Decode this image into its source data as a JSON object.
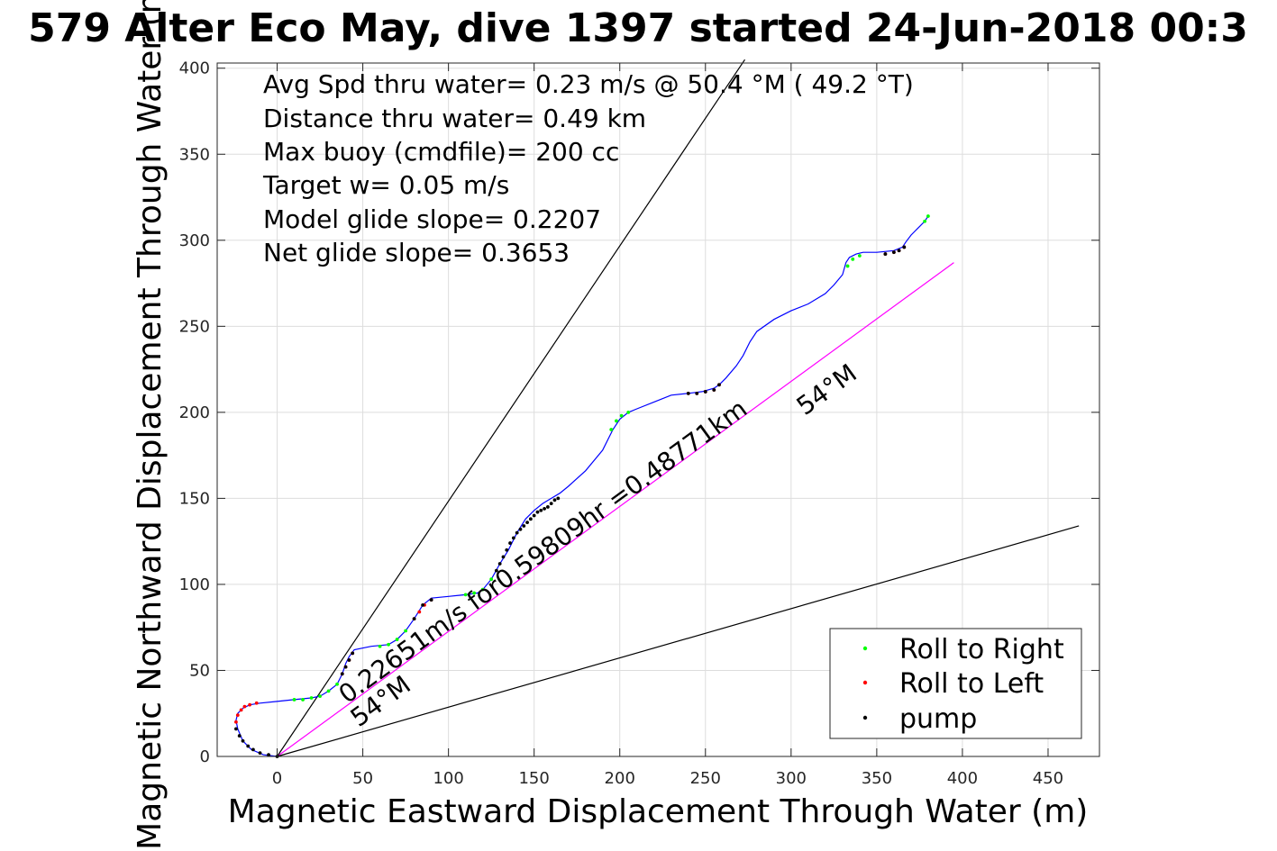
{
  "chart_data": {
    "type": "scatter",
    "title": "579 Alter Eco May, dive 1397 started 24-Jun-2018 00:3",
    "xlabel": "Magnetic Eastward Displacement Through Water (m)",
    "ylabel": "Magnetic Northward Displacement Through Water (m)",
    "xlim": [
      -35,
      480
    ],
    "ylim": [
      0,
      403
    ],
    "xticks": [
      "0",
      "50",
      "100",
      "150",
      "200",
      "250",
      "300",
      "350",
      "400",
      "450"
    ],
    "yticks": [
      "0",
      "50",
      "100",
      "150",
      "200",
      "250",
      "300",
      "350",
      "400"
    ],
    "grid": true,
    "legend_position": "bottom-right",
    "annotations": [
      "Avg Spd thru water=  0.23 m/s @  50.4 °M ( 49.2 °T)",
      "Distance thru water=  0.49 km",
      "Max buoy (cmdfile)= 200 cc",
      "Target w= 0.05 m/s",
      "Model glide slope= 0.2207",
      "Net glide slope= 0.3653"
    ],
    "rotated_labels": {
      "main": "0.22651m/s for0.59809hr =0.48771km",
      "heading_a": "54°M",
      "heading_b": "54°M"
    },
    "colors": {
      "track": "#0000ff",
      "roll_right": "#00ff00",
      "roll_left": "#ff0000",
      "pump": "#000000",
      "heading_line": "#ff00ff",
      "grid": "#dddddd"
    },
    "reference_lines": [
      {
        "name": "heading-line",
        "x": [
          0,
          395
        ],
        "y": [
          0,
          287
        ]
      },
      {
        "name": "glide-slope-upper",
        "x": [
          0,
          273
        ],
        "y": [
          0,
          405
        ]
      },
      {
        "name": "glide-slope-lower",
        "x": [
          0,
          468
        ],
        "y": [
          0,
          134
        ]
      }
    ],
    "track": {
      "x": [
        0,
        -8,
        -15,
        -20,
        -23,
        -24,
        -23,
        -20,
        -16,
        -10,
        0,
        10,
        20,
        25,
        30,
        35,
        38,
        40,
        42,
        45,
        55,
        65,
        70,
        75,
        80,
        85,
        90,
        100,
        110,
        117,
        120,
        125,
        130,
        135,
        140,
        145,
        150,
        155,
        160,
        165,
        170,
        180,
        190,
        196,
        200,
        205,
        210,
        220,
        230,
        240,
        248,
        255,
        258,
        262,
        268,
        272,
        276,
        280,
        290,
        300,
        310,
        320,
        325,
        330,
        332,
        334,
        338,
        342,
        350,
        360,
        365,
        367,
        370,
        374,
        378,
        380
      ],
      "y": [
        0,
        1,
        4,
        9,
        16,
        21,
        25,
        28,
        30,
        31,
        32,
        33,
        34,
        35,
        38,
        42,
        48,
        54,
        58,
        62,
        64,
        65,
        68,
        73,
        80,
        88,
        92,
        93,
        94,
        95,
        97,
        103,
        112,
        120,
        130,
        138,
        143,
        147,
        150,
        153,
        157,
        166,
        178,
        190,
        196,
        200,
        202,
        206,
        210,
        211,
        212,
        214,
        216,
        220,
        227,
        233,
        241,
        247,
        254,
        259,
        263,
        269,
        274,
        280,
        287,
        290,
        292,
        293,
        293,
        294,
        296,
        299,
        303,
        307,
        311,
        314
      ]
    },
    "roll_right": {
      "x": [
        10,
        15,
        20,
        25,
        30,
        35,
        60,
        65,
        70,
        75,
        110,
        115,
        120,
        125,
        195,
        198,
        201,
        205,
        333,
        336,
        340,
        378,
        380
      ],
      "y": [
        33,
        33,
        34,
        35,
        38,
        42,
        64,
        65,
        68,
        73,
        94,
        95,
        97,
        103,
        190,
        195,
        198,
        200,
        285,
        289,
        291,
        311,
        314
      ]
    },
    "roll_left": {
      "x": [
        -24,
        -23,
        -21,
        -19,
        -16,
        -12,
        38,
        40,
        42,
        44,
        80,
        83,
        86,
        90,
        240,
        245,
        250,
        255,
        258,
        355,
        360,
        363,
        366
      ],
      "y": [
        20,
        24,
        27,
        29,
        30,
        31,
        48,
        52,
        56,
        60,
        80,
        84,
        88,
        91,
        211,
        211,
        212,
        213,
        216,
        292,
        293,
        294,
        296
      ]
    },
    "pump": {
      "x": [
        -24,
        -22,
        -20,
        -17,
        -14,
        -10,
        -5,
        0,
        38,
        40,
        42,
        44,
        80,
        85,
        90,
        128,
        130,
        132,
        134,
        136,
        138,
        140,
        142,
        144,
        146,
        148,
        150,
        152,
        154,
        156,
        158,
        160,
        162,
        164,
        240,
        245,
        250,
        255,
        258,
        355,
        360,
        363,
        366
      ],
      "y": [
        16,
        12,
        9,
        6,
        4,
        2,
        1,
        0,
        48,
        52,
        56,
        60,
        80,
        88,
        91,
        108,
        112,
        116,
        120,
        124,
        127,
        130,
        132,
        134,
        136,
        138,
        140,
        142,
        143,
        144,
        145,
        147,
        149,
        150,
        211,
        211,
        212,
        213,
        216,
        292,
        293,
        294,
        296
      ]
    },
    "series": [
      {
        "name": "Roll to Right",
        "color": "#00ff00"
      },
      {
        "name": "Roll to Left",
        "color": "#ff0000"
      },
      {
        "name": "pump",
        "color": "#000000"
      }
    ]
  }
}
